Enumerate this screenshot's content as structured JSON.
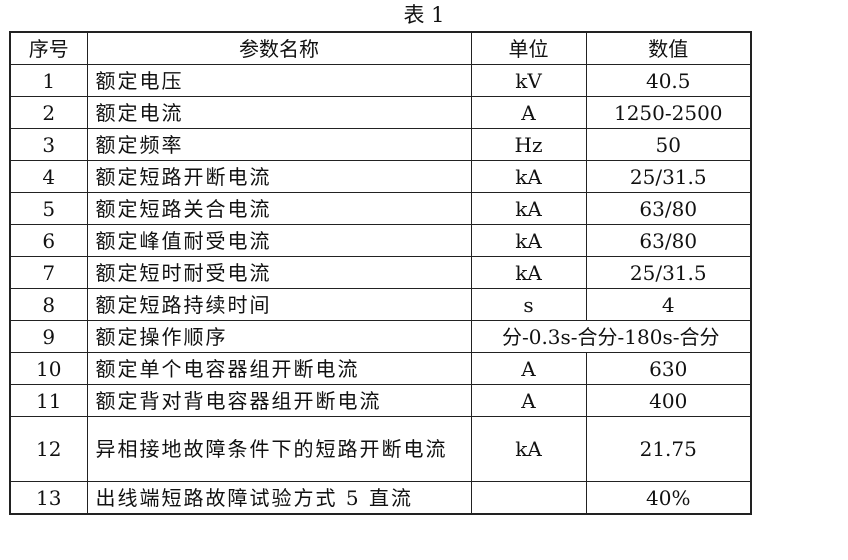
{
  "caption": "表 1",
  "headers": [
    "序号",
    "参数名称",
    "单位",
    "数值"
  ],
  "rows": [
    {
      "no": "1",
      "name": "额定电压",
      "unit": "kV",
      "value": "40.5"
    },
    {
      "no": "2",
      "name": "额定电流",
      "unit": "A",
      "value": "1250-2500"
    },
    {
      "no": "3",
      "name": "额定频率",
      "unit": "Hz",
      "value": "50"
    },
    {
      "no": "4",
      "name": "额定短路开断电流",
      "unit": "kA",
      "value": "25/31.5"
    },
    {
      "no": "5",
      "name": "额定短路关合电流",
      "unit": "kA",
      "value": "63/80"
    },
    {
      "no": "6",
      "name": "额定峰值耐受电流",
      "unit": "kA",
      "value": "63/80"
    },
    {
      "no": "7",
      "name": "额定短时耐受电流",
      "unit": "kA",
      "value": "25/31.5"
    },
    {
      "no": "8",
      "name": "额定短路持续时间",
      "unit": "s",
      "value": "4"
    },
    {
      "no": "9",
      "name": "额定操作顺序",
      "value": "分-0.3s-合分-180s-合分"
    },
    {
      "no": "10",
      "name": "额定单个电容器组开断电流",
      "unit": "A",
      "value": "630"
    },
    {
      "no": "11",
      "name": "额定背对背电容器组开断电流",
      "unit": "A",
      "value": "400"
    },
    {
      "no": "12",
      "name": "异相接地故障条件下的短路开断电流",
      "unit": "kA",
      "value": "21.75"
    },
    {
      "no": "13",
      "name": "出线端短路故障试验方式 5 直流",
      "unit": "",
      "value": "40%"
    }
  ]
}
